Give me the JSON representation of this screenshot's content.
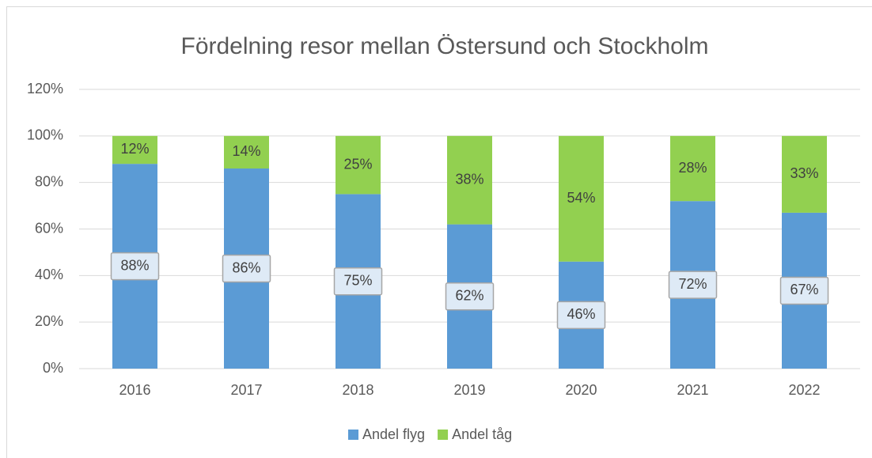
{
  "chart_data": {
    "type": "stacked_bar",
    "title": "Fördelning resor mellan Östersund och Stockholm",
    "categories": [
      "2016",
      "2017",
      "2018",
      "2019",
      "2020",
      "2021",
      "2022"
    ],
    "series": [
      {
        "name": "Andel flyg",
        "color": "#5b9bd5",
        "values": [
          88,
          86,
          75,
          62,
          46,
          72,
          67
        ],
        "value_labels": [
          "88%",
          "86%",
          "75%",
          "62%",
          "46%",
          "72%",
          "67%"
        ]
      },
      {
        "name": "Andel tåg",
        "color": "#92d050",
        "values": [
          12,
          14,
          25,
          38,
          54,
          28,
          33
        ],
        "value_labels": [
          "12%",
          "14%",
          "25%",
          "38%",
          "54%",
          "28%",
          "33%"
        ]
      }
    ],
    "ylim": [
      0,
      120
    ],
    "yticks": [
      {
        "value": 0,
        "label": "0%"
      },
      {
        "value": 20,
        "label": "20%"
      },
      {
        "value": 40,
        "label": "40%"
      },
      {
        "value": 60,
        "label": "60%"
      },
      {
        "value": 80,
        "label": "80%"
      },
      {
        "value": 100,
        "label": "100%"
      },
      {
        "value": 120,
        "label": "120%"
      }
    ],
    "grid": true,
    "legend": "bottom"
  }
}
